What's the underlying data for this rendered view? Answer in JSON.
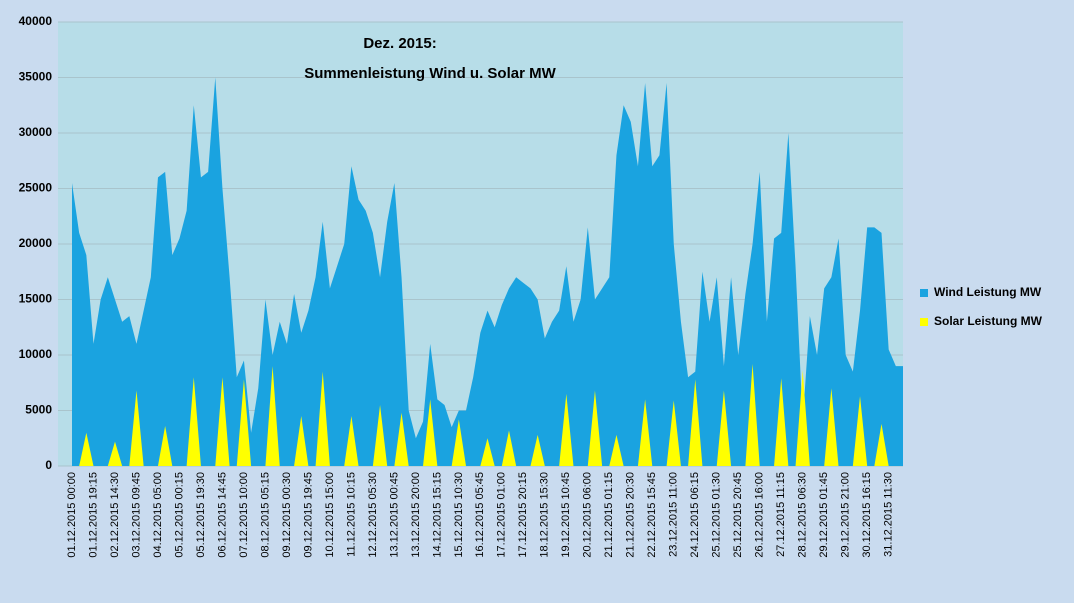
{
  "chart_data": {
    "type": "area",
    "title": "Dez. 2015:",
    "subtitle": "Summenleistung Wind u. Solar MW",
    "categories": [
      "01.12.2015 00:00",
      null,
      null,
      "01.12.2015 19:15",
      null,
      null,
      "02.12.2015 14:30",
      null,
      null,
      "03.12.2015 09:45",
      null,
      null,
      "04.12.2015 05:00",
      null,
      null,
      "05.12.2015 00:15",
      null,
      null,
      "05.12.2015 19:30",
      null,
      null,
      "06.12.2015 14:45",
      null,
      null,
      "07.12.2015 10:00",
      null,
      null,
      "08.12.2015 05:15",
      null,
      null,
      "09.12.2015 00:30",
      null,
      null,
      "09.12.2015 19:45",
      null,
      null,
      "10.12.2015 15:00",
      null,
      null,
      "11.12.2015 10:15",
      null,
      null,
      "12.12.2015 05:30",
      null,
      null,
      "13.12.2015 00:45",
      null,
      null,
      "13.12.2015 20:00",
      null,
      null,
      "14.12.2015 15:15",
      null,
      null,
      "15.12.2015 10:30",
      null,
      null,
      "16.12.2015 05:45",
      null,
      null,
      "17.12.2015 01:00",
      null,
      null,
      "17.12.2015 20:15",
      null,
      null,
      "18.12.2015 15:30",
      null,
      null,
      "19.12.2015 10:45",
      null,
      null,
      "20.12.2015 06:00",
      null,
      null,
      "21.12.2015 01:15",
      null,
      null,
      "21.12.2015 20:30",
      null,
      null,
      "22.12.2015 15:45",
      null,
      null,
      "23.12.2015 11:00",
      null,
      null,
      "24.12.2015 06:15",
      null,
      null,
      "25.12.2015 01:30",
      null,
      null,
      "25.12.2015 20:45",
      null,
      null,
      "26.12.2015 16:00",
      null,
      null,
      "27.12.2015 11:15",
      null,
      null,
      "28.12.2015 06:30",
      null,
      null,
      "29.12.2015 01:45",
      null,
      null,
      "29.12.2015 21:00",
      null,
      null,
      "30.12.2015 16:15",
      null,
      null,
      "31.12.2015 11:30",
      null,
      null
    ],
    "series": [
      {
        "name": "Wind Leistung MW",
        "color": "#1aa3e0",
        "values": [
          25500,
          21000,
          19000,
          11000,
          15000,
          17000,
          15000,
          13000,
          13500,
          11000,
          14000,
          17000,
          26000,
          26500,
          19000,
          20500,
          23000,
          32500,
          26000,
          26500,
          35000,
          25000,
          17000,
          8000,
          9500,
          3000,
          7000,
          15000,
          10000,
          13000,
          11000,
          15500,
          12000,
          14000,
          17000,
          22000,
          16000,
          18000,
          20000,
          27000,
          24000,
          23000,
          21000,
          17000,
          22000,
          25500,
          17000,
          5000,
          2500,
          4000,
          11000,
          6000,
          5500,
          3500,
          5000,
          5000,
          8000,
          12000,
          14000,
          12500,
          14500,
          16000,
          17000,
          16500,
          16000,
          15000,
          11500,
          13000,
          14000,
          18000,
          13000,
          15000,
          21500,
          15000,
          16000,
          17000,
          28000,
          32500,
          31000,
          27000,
          34500,
          27000,
          28000,
          34500,
          20000,
          13000,
          8000,
          8500,
          17500,
          13000,
          17000,
          9000,
          17000,
          10000,
          15500,
          20000,
          26500,
          13000,
          20500,
          21000,
          30000,
          18000,
          4000,
          13500,
          10000,
          16000,
          17000,
          20500,
          10000,
          8500,
          14000,
          21500,
          21500,
          21000,
          10500,
          9000,
          9000
        ]
      },
      {
        "name": "Solar Leistung MW",
        "color": "#ffff00",
        "values": [
          0,
          0,
          3000,
          0,
          0,
          0,
          2200,
          0,
          0,
          6800,
          0,
          0,
          0,
          3600,
          0,
          0,
          0,
          8000,
          0,
          0,
          0,
          8000,
          0,
          0,
          7800,
          0,
          0,
          0,
          9000,
          0,
          0,
          0,
          4500,
          0,
          0,
          8500,
          0,
          0,
          0,
          4500,
          0,
          0,
          0,
          5500,
          0,
          0,
          4800,
          0,
          0,
          0,
          6000,
          0,
          0,
          0,
          4200,
          0,
          0,
          0,
          2500,
          0,
          0,
          3200,
          0,
          0,
          0,
          2800,
          0,
          0,
          0,
          6500,
          0,
          0,
          0,
          6800,
          0,
          0,
          2800,
          0,
          0,
          0,
          6000,
          0,
          0,
          0,
          5900,
          0,
          0,
          7800,
          0,
          0,
          0,
          6800,
          0,
          0,
          0,
          9200,
          0,
          0,
          0,
          7900,
          0,
          0,
          8600,
          0,
          0,
          0,
          7000,
          0,
          0,
          0,
          6300,
          0,
          0,
          3800,
          0,
          0,
          0
        ]
      }
    ],
    "ylim": [
      0,
      40000
    ],
    "yticks": [
      0,
      5000,
      10000,
      15000,
      20000,
      25000,
      30000,
      35000,
      40000
    ],
    "grid": true,
    "legend": "right"
  }
}
